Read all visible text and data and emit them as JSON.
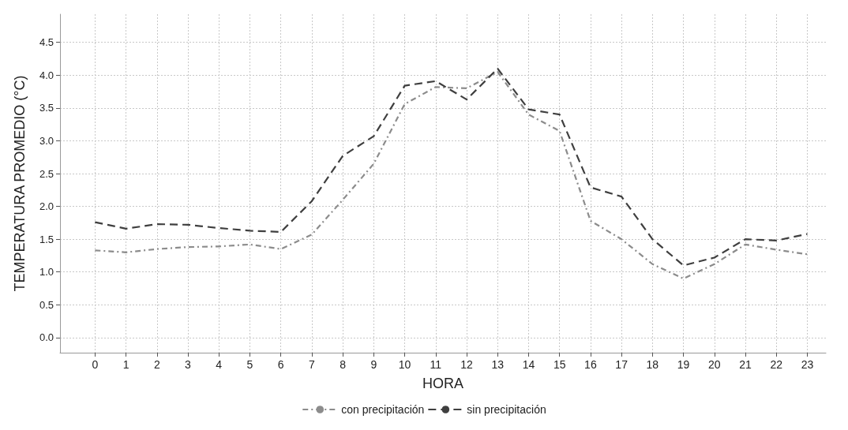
{
  "chart_data": {
    "type": "line",
    "xlabel": "HORA",
    "ylabel": "TEMPERATURA PROMEDIO (°C)",
    "x": [
      0,
      1,
      2,
      3,
      4,
      5,
      6,
      7,
      8,
      9,
      10,
      11,
      12,
      13,
      14,
      15,
      16,
      17,
      18,
      19,
      20,
      21,
      22,
      23
    ],
    "series": [
      {
        "name": "con precipitación",
        "color": "#8c8c8c",
        "line_style": "dotted",
        "values": [
          1.33,
          1.3,
          1.35,
          1.38,
          1.39,
          1.42,
          1.35,
          1.57,
          2.1,
          2.65,
          3.56,
          3.82,
          3.8,
          4.05,
          3.4,
          3.15,
          1.78,
          1.5,
          1.12,
          0.9,
          1.12,
          1.42,
          1.34,
          1.27
        ]
      },
      {
        "name": "sin precipitación",
        "color": "#3f3f3f",
        "line_style": "dashed",
        "values": [
          1.76,
          1.66,
          1.73,
          1.72,
          1.67,
          1.63,
          1.61,
          2.08,
          2.77,
          3.07,
          3.84,
          3.91,
          3.63,
          4.1,
          3.48,
          3.4,
          2.29,
          2.15,
          1.5,
          1.1,
          1.22,
          1.5,
          1.48,
          1.58
        ]
      }
    ],
    "xlim": [
      -1.13,
      23.6
    ],
    "xticks": [
      0,
      1,
      2,
      3,
      4,
      5,
      6,
      7,
      8,
      9,
      10,
      11,
      12,
      13,
      14,
      15,
      16,
      17,
      18,
      19,
      20,
      21,
      22,
      23
    ],
    "ylim": [
      -0.23,
      4.93
    ],
    "yticks": [
      {
        "value": 0,
        "label": "0.0"
      },
      0.5,
      {
        "value": 1,
        "label": "1.0"
      },
      1.5,
      {
        "value": 2,
        "label": "2.0"
      },
      2.5,
      {
        "value": 3,
        "label": "3.0"
      },
      3.5,
      {
        "value": 4,
        "label": "4.0"
      },
      4.5
    ],
    "grid": true,
    "legend": "bottom",
    "marker": "none"
  }
}
